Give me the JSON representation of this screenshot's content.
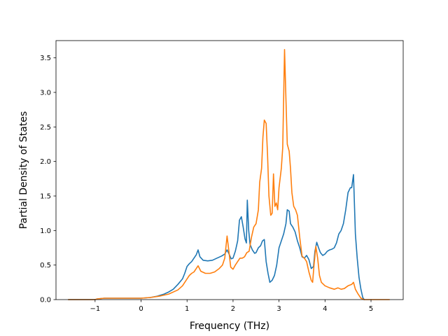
{
  "chart_data": {
    "type": "line",
    "title": "",
    "xlabel": "Frequency (THz)",
    "ylabel": "Partial Density of States",
    "xlim": [
      -1.85,
      5.7
    ],
    "ylim": [
      0.0,
      3.75
    ],
    "xticks": [
      -1,
      0,
      1,
      2,
      3,
      4,
      5
    ],
    "yticks": [
      0.0,
      0.5,
      1.0,
      1.5,
      2.0,
      2.5,
      3.0,
      3.5
    ],
    "xtick_labels": [
      "−1",
      "0",
      "1",
      "2",
      "3",
      "4",
      "5"
    ],
    "ytick_labels": [
      "0.0",
      "0.5",
      "1.0",
      "1.5",
      "2.0",
      "2.5",
      "3.0",
      "3.5"
    ],
    "grid": false,
    "legend": "none",
    "series": [
      {
        "color": "#1f77b4",
        "points": [
          [
            -1.58,
            0.0
          ],
          [
            -1.0,
            0.0
          ],
          [
            -0.95,
            0.01
          ],
          [
            -0.8,
            0.02
          ],
          [
            -0.5,
            0.02
          ],
          [
            0.0,
            0.02
          ],
          [
            0.2,
            0.03
          ],
          [
            0.35,
            0.05
          ],
          [
            0.5,
            0.08
          ],
          [
            0.6,
            0.11
          ],
          [
            0.7,
            0.15
          ],
          [
            0.8,
            0.22
          ],
          [
            0.9,
            0.3
          ],
          [
            0.95,
            0.38
          ],
          [
            1.0,
            0.48
          ],
          [
            1.05,
            0.52
          ],
          [
            1.1,
            0.55
          ],
          [
            1.15,
            0.6
          ],
          [
            1.2,
            0.65
          ],
          [
            1.24,
            0.72
          ],
          [
            1.28,
            0.62
          ],
          [
            1.35,
            0.57
          ],
          [
            1.45,
            0.56
          ],
          [
            1.55,
            0.57
          ],
          [
            1.65,
            0.6
          ],
          [
            1.75,
            0.63
          ],
          [
            1.82,
            0.66
          ],
          [
            1.87,
            0.72
          ],
          [
            1.92,
            0.65
          ],
          [
            1.96,
            0.59
          ],
          [
            2.0,
            0.6
          ],
          [
            2.05,
            0.7
          ],
          [
            2.1,
            0.85
          ],
          [
            2.14,
            1.15
          ],
          [
            2.18,
            1.2
          ],
          [
            2.22,
            1.05
          ],
          [
            2.26,
            0.88
          ],
          [
            2.29,
            0.82
          ],
          [
            2.31,
            1.44
          ],
          [
            2.34,
            1.0
          ],
          [
            2.37,
            0.8
          ],
          [
            2.42,
            0.72
          ],
          [
            2.47,
            0.67
          ],
          [
            2.5,
            0.68
          ],
          [
            2.55,
            0.75
          ],
          [
            2.6,
            0.78
          ],
          [
            2.64,
            0.85
          ],
          [
            2.68,
            0.87
          ],
          [
            2.72,
            0.55
          ],
          [
            2.76,
            0.38
          ],
          [
            2.8,
            0.25
          ],
          [
            2.85,
            0.28
          ],
          [
            2.9,
            0.35
          ],
          [
            2.95,
            0.5
          ],
          [
            3.0,
            0.75
          ],
          [
            3.05,
            0.85
          ],
          [
            3.1,
            0.95
          ],
          [
            3.15,
            1.1
          ],
          [
            3.18,
            1.3
          ],
          [
            3.22,
            1.28
          ],
          [
            3.25,
            1.1
          ],
          [
            3.3,
            1.05
          ],
          [
            3.35,
            0.98
          ],
          [
            3.4,
            0.85
          ],
          [
            3.45,
            0.75
          ],
          [
            3.5,
            0.62
          ],
          [
            3.55,
            0.6
          ],
          [
            3.6,
            0.64
          ],
          [
            3.65,
            0.58
          ],
          [
            3.7,
            0.45
          ],
          [
            3.75,
            0.48
          ],
          [
            3.78,
            0.7
          ],
          [
            3.82,
            0.83
          ],
          [
            3.86,
            0.75
          ],
          [
            3.9,
            0.68
          ],
          [
            3.95,
            0.64
          ],
          [
            4.0,
            0.66
          ],
          [
            4.05,
            0.7
          ],
          [
            4.1,
            0.72
          ],
          [
            4.15,
            0.73
          ],
          [
            4.2,
            0.75
          ],
          [
            4.25,
            0.82
          ],
          [
            4.3,
            0.95
          ],
          [
            4.35,
            1.0
          ],
          [
            4.4,
            1.1
          ],
          [
            4.45,
            1.3
          ],
          [
            4.5,
            1.55
          ],
          [
            4.55,
            1.62
          ],
          [
            4.58,
            1.62
          ],
          [
            4.62,
            1.81
          ],
          [
            4.66,
            0.95
          ],
          [
            4.7,
            0.6
          ],
          [
            4.74,
            0.32
          ],
          [
            4.78,
            0.15
          ],
          [
            4.82,
            0.03
          ],
          [
            4.85,
            0.0
          ]
        ]
      },
      {
        "color": "#ff7f0e",
        "points": [
          [
            -1.58,
            0.0
          ],
          [
            -1.0,
            0.0
          ],
          [
            -0.95,
            0.01
          ],
          [
            -0.8,
            0.02
          ],
          [
            -0.5,
            0.02
          ],
          [
            0.0,
            0.02
          ],
          [
            0.2,
            0.03
          ],
          [
            0.4,
            0.05
          ],
          [
            0.6,
            0.08
          ],
          [
            0.8,
            0.14
          ],
          [
            0.9,
            0.2
          ],
          [
            1.0,
            0.3
          ],
          [
            1.05,
            0.35
          ],
          [
            1.1,
            0.38
          ],
          [
            1.15,
            0.4
          ],
          [
            1.2,
            0.45
          ],
          [
            1.24,
            0.49
          ],
          [
            1.3,
            0.41
          ],
          [
            1.4,
            0.38
          ],
          [
            1.5,
            0.38
          ],
          [
            1.6,
            0.4
          ],
          [
            1.7,
            0.45
          ],
          [
            1.77,
            0.5
          ],
          [
            1.82,
            0.6
          ],
          [
            1.87,
            0.92
          ],
          [
            1.91,
            0.7
          ],
          [
            1.95,
            0.47
          ],
          [
            2.0,
            0.44
          ],
          [
            2.05,
            0.5
          ],
          [
            2.1,
            0.55
          ],
          [
            2.15,
            0.6
          ],
          [
            2.2,
            0.6
          ],
          [
            2.25,
            0.62
          ],
          [
            2.3,
            0.68
          ],
          [
            2.35,
            0.7
          ],
          [
            2.4,
            0.9
          ],
          [
            2.45,
            1.05
          ],
          [
            2.5,
            1.1
          ],
          [
            2.55,
            1.3
          ],
          [
            2.58,
            1.7
          ],
          [
            2.62,
            1.9
          ],
          [
            2.65,
            2.35
          ],
          [
            2.68,
            2.6
          ],
          [
            2.72,
            2.55
          ],
          [
            2.75,
            2.1
          ],
          [
            2.78,
            1.5
          ],
          [
            2.82,
            1.22
          ],
          [
            2.85,
            1.25
          ],
          [
            2.88,
            1.82
          ],
          [
            2.91,
            1.35
          ],
          [
            2.94,
            1.4
          ],
          [
            2.97,
            1.3
          ],
          [
            3.0,
            1.62
          ],
          [
            3.05,
            1.9
          ],
          [
            3.08,
            2.2
          ],
          [
            3.12,
            3.62
          ],
          [
            3.15,
            2.9
          ],
          [
            3.18,
            2.25
          ],
          [
            3.22,
            2.15
          ],
          [
            3.25,
            1.9
          ],
          [
            3.28,
            1.55
          ],
          [
            3.32,
            1.35
          ],
          [
            3.36,
            1.3
          ],
          [
            3.4,
            1.22
          ],
          [
            3.45,
            0.9
          ],
          [
            3.5,
            0.63
          ],
          [
            3.55,
            0.6
          ],
          [
            3.6,
            0.55
          ],
          [
            3.65,
            0.4
          ],
          [
            3.7,
            0.28
          ],
          [
            3.73,
            0.25
          ],
          [
            3.76,
            0.5
          ],
          [
            3.8,
            0.77
          ],
          [
            3.84,
            0.6
          ],
          [
            3.88,
            0.35
          ],
          [
            3.92,
            0.25
          ],
          [
            4.0,
            0.2
          ],
          [
            4.1,
            0.17
          ],
          [
            4.2,
            0.15
          ],
          [
            4.28,
            0.17
          ],
          [
            4.35,
            0.15
          ],
          [
            4.42,
            0.16
          ],
          [
            4.5,
            0.2
          ],
          [
            4.58,
            0.22
          ],
          [
            4.62,
            0.25
          ],
          [
            4.66,
            0.15
          ],
          [
            4.72,
            0.08
          ],
          [
            4.78,
            0.02
          ],
          [
            4.85,
            0.0
          ],
          [
            5.4,
            0.0
          ]
        ]
      }
    ]
  }
}
